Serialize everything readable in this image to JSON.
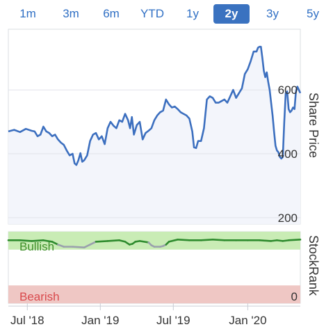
{
  "range_tabs": [
    {
      "label": "1m"
    },
    {
      "label": "3m"
    },
    {
      "label": "6m"
    },
    {
      "label": "YTD"
    },
    {
      "label": "1y"
    },
    {
      "label": "2y",
      "active": true
    },
    {
      "label": "3y"
    },
    {
      "label": "5y"
    }
  ],
  "colors": {
    "tab_active_bg": "#3a72c0",
    "tab_text": "#2f6fc4",
    "price_line": "#3c6fbf",
    "price_area": "#f3f5fb",
    "bullish_band": "#c9ecb5",
    "bullish_text": "#3f8f2a",
    "bearish_band": "#efc7c4",
    "bearish_text": "#d9494c",
    "rank_line_green": "#2e8b2e",
    "rank_line_grey": "#9aa0ad"
  },
  "chart_data": [
    {
      "type": "line",
      "ylabel": "Share Price",
      "ylim": [
        180,
        790
      ],
      "yticks": [
        200,
        400,
        600
      ],
      "xlim": [
        0,
        100
      ],
      "points": [
        [
          0,
          470
        ],
        [
          2,
          475
        ],
        [
          4,
          468
        ],
        [
          6,
          478
        ],
        [
          8,
          472
        ],
        [
          9,
          470
        ],
        [
          10,
          455
        ],
        [
          11,
          460
        ],
        [
          12,
          485
        ],
        [
          13,
          470
        ],
        [
          14,
          465
        ],
        [
          15,
          455
        ],
        [
          16,
          460
        ],
        [
          17,
          445
        ],
        [
          18,
          435
        ],
        [
          19,
          428
        ],
        [
          20,
          410
        ],
        [
          21,
          395
        ],
        [
          22,
          400
        ],
        [
          22.7,
          370
        ],
        [
          23.3,
          365
        ],
        [
          24,
          380
        ],
        [
          24.7,
          402
        ],
        [
          25.3,
          375
        ],
        [
          26,
          380
        ],
        [
          27,
          395
        ],
        [
          28,
          440
        ],
        [
          29,
          460
        ],
        [
          30,
          465
        ],
        [
          31,
          445
        ],
        [
          32,
          455
        ],
        [
          33,
          430
        ],
        [
          34,
          480
        ],
        [
          35,
          500
        ],
        [
          36,
          488
        ],
        [
          37,
          480
        ],
        [
          38,
          505
        ],
        [
          39,
          500
        ],
        [
          40,
          525
        ],
        [
          41,
          505
        ],
        [
          41.7,
          480
        ],
        [
          42.3,
          515
        ],
        [
          43,
          460
        ],
        [
          44,
          490
        ],
        [
          45,
          500
        ],
        [
          46,
          445
        ],
        [
          47,
          465
        ],
        [
          48,
          472
        ],
        [
          49,
          480
        ],
        [
          50,
          505
        ],
        [
          51,
          520
        ],
        [
          52,
          530
        ],
        [
          53,
          535
        ],
        [
          54,
          570
        ],
        [
          55,
          555
        ],
        [
          56,
          545
        ],
        [
          57,
          548
        ],
        [
          58,
          540
        ],
        [
          59,
          530
        ],
        [
          60,
          525
        ],
        [
          61,
          520
        ],
        [
          62,
          510
        ],
        [
          63,
          470
        ],
        [
          63.6,
          420
        ],
        [
          64.3,
          418
        ],
        [
          65,
          440
        ],
        [
          66,
          440
        ],
        [
          67,
          480
        ],
        [
          68,
          570
        ],
        [
          69,
          580
        ],
        [
          70,
          575
        ],
        [
          71,
          560
        ],
        [
          72,
          560
        ],
        [
          73,
          565
        ],
        [
          74,
          570
        ],
        [
          75,
          560
        ],
        [
          76,
          580
        ],
        [
          77,
          600
        ],
        [
          78,
          575
        ],
        [
          79,
          590
        ],
        [
          80,
          605
        ],
        [
          81,
          650
        ],
        [
          82,
          665
        ],
        [
          83,
          690
        ],
        [
          84,
          720
        ],
        [
          85,
          720
        ],
        [
          85.5,
          732
        ],
        [
          86,
          735
        ],
        [
          86.5,
          735
        ],
        [
          87,
          700
        ],
        [
          87.5,
          660
        ],
        [
          88,
          640
        ],
        [
          88.5,
          655
        ],
        [
          89,
          625
        ],
        [
          89.5,
          600
        ],
        [
          90,
          560
        ],
        [
          90.5,
          520
        ],
        [
          91,
          470
        ],
        [
          91.5,
          425
        ],
        [
          92,
          410
        ],
        [
          92.5,
          405
        ],
        [
          93,
          390
        ],
        [
          93.5,
          385
        ],
        [
          94,
          390
        ],
        [
          94.5,
          500
        ],
        [
          95,
          590
        ],
        [
          95.5,
          595
        ],
        [
          96,
          540
        ],
        [
          96.5,
          530
        ],
        [
          97,
          535
        ],
        [
          97.5,
          545
        ],
        [
          98,
          540
        ],
        [
          98.5,
          595
        ],
        [
          99,
          610
        ],
        [
          100,
          590
        ]
      ]
    },
    {
      "type": "line",
      "ylabel": "StockRank",
      "ylim": [
        0,
        100
      ],
      "yticks": [
        0
      ],
      "xlim": [
        0,
        100
      ],
      "bands": [
        {
          "label": "Bullish",
          "from": 75,
          "to": 100
        },
        {
          "label": "Bearish",
          "from": 0,
          "to": 25
        }
      ],
      "points": [
        [
          0,
          88
        ],
        [
          4,
          88
        ],
        [
          8,
          87
        ],
        [
          12,
          88
        ],
        [
          15,
          86
        ],
        [
          17,
          82
        ],
        [
          19,
          79
        ],
        [
          22,
          79
        ],
        [
          26,
          78
        ],
        [
          28,
          82
        ],
        [
          30,
          86
        ],
        [
          34,
          87
        ],
        [
          38,
          88
        ],
        [
          40,
          86
        ],
        [
          41.5,
          82
        ],
        [
          42.5,
          83
        ],
        [
          43.5,
          86
        ],
        [
          45,
          87
        ],
        [
          48,
          85
        ],
        [
          49,
          81
        ],
        [
          50,
          79
        ],
        [
          52,
          79
        ],
        [
          53,
          80
        ],
        [
          54,
          82
        ],
        [
          55,
          86
        ],
        [
          58,
          89
        ],
        [
          62,
          88
        ],
        [
          66,
          88
        ],
        [
          70,
          89
        ],
        [
          74,
          88
        ],
        [
          78,
          88
        ],
        [
          82,
          88
        ],
        [
          86,
          88
        ],
        [
          90,
          87
        ],
        [
          92,
          88
        ],
        [
          94,
          87
        ],
        [
          96,
          88
        ],
        [
          100,
          89
        ]
      ],
      "grey_segments": [
        [
          17,
          30
        ],
        [
          48,
          54
        ]
      ]
    }
  ],
  "x_axis": {
    "ticks": [
      {
        "label": "Jul '18",
        "x": 6.5
      },
      {
        "label": "Jan '19",
        "x": 31.5
      },
      {
        "label": "Jul '19",
        "x": 56.5
      },
      {
        "label": "Jan '20",
        "x": 82
      }
    ]
  }
}
